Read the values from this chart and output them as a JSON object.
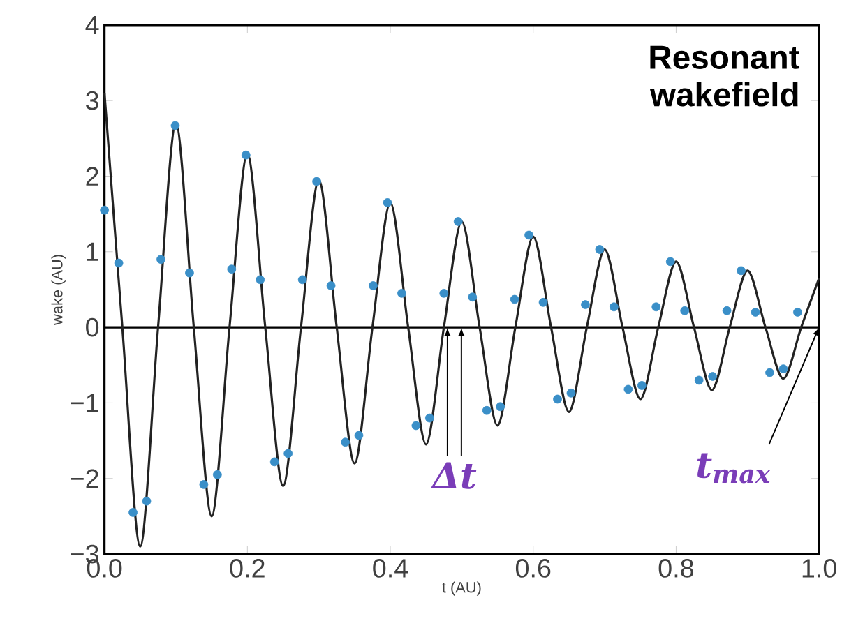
{
  "chart_data": {
    "type": "line",
    "xlabel": "t (AU)",
    "ylabel": "wake (AU)",
    "xlim": [
      0,
      1
    ],
    "ylim": [
      -3,
      4
    ],
    "xticks": [
      {
        "value": 0,
        "label": "0.0"
      },
      {
        "value": 0.2,
        "label": "0.2"
      },
      {
        "value": 0.4,
        "label": "0.4"
      },
      {
        "value": 0.6,
        "label": "0.6"
      },
      {
        "value": 0.8,
        "label": "0.8"
      },
      {
        "value": 1,
        "label": "1.0"
      }
    ],
    "yticks": [
      {
        "value": -3,
        "label": "−3"
      },
      {
        "value": -2,
        "label": "−2"
      },
      {
        "value": -1,
        "label": "−1"
      },
      0,
      1,
      2,
      3,
      4
    ],
    "series": [
      {
        "color": "#222222",
        "marker": "none",
        "x": [
          0,
          0.025,
          0.05,
          0.075,
          0.1,
          0.125,
          0.15,
          0.175,
          0.2,
          0.225,
          0.25,
          0.275,
          0.3,
          0.325,
          0.35,
          0.375,
          0.4,
          0.425,
          0.45,
          0.475,
          0.5,
          0.525,
          0.55,
          0.575,
          0.6,
          0.625,
          0.65,
          0.675,
          0.7,
          0.725,
          0.75,
          0.775,
          0.8,
          0.825,
          0.85,
          0.875,
          0.9,
          0.925,
          0.95,
          0.975,
          1.0
        ],
        "values": [
          3.1,
          0,
          -2.9,
          0,
          2.7,
          0,
          -2.5,
          0,
          2.3,
          0,
          -2.1,
          0,
          1.95,
          0,
          -1.8,
          0,
          1.65,
          0,
          -1.55,
          0,
          1.4,
          0,
          -1.3,
          0,
          1.2,
          0,
          -1.12,
          0,
          1.03,
          0,
          -0.95,
          0,
          0.87,
          0,
          -0.83,
          0,
          0.75,
          0,
          -0.68,
          0,
          0.65
        ]
      },
      {
        "type": "scatter",
        "marker": "circle",
        "color": "#3a8fc8",
        "x": [
          0,
          0.02,
          0.04,
          0.059,
          0.079,
          0.099,
          0.119,
          0.139,
          0.158,
          0.178,
          0.198,
          0.218,
          0.238,
          0.257,
          0.277,
          0.297,
          0.317,
          0.337,
          0.356,
          0.376,
          0.396,
          0.416,
          0.436,
          0.455,
          0.475,
          0.495,
          0.515,
          0.535,
          0.554,
          0.574,
          0.594,
          0.614,
          0.634,
          0.653,
          0.673,
          0.693,
          0.713,
          0.733,
          0.752,
          0.772,
          0.792,
          0.812,
          0.832,
          0.851,
          0.871,
          0.891,
          0.911,
          0.931,
          0.95,
          0.97
        ],
        "values": [
          1.55,
          0.85,
          -2.45,
          -2.3,
          0.9,
          2.67,
          0.72,
          -2.08,
          -1.95,
          0.77,
          2.28,
          0.63,
          -1.78,
          -1.67,
          0.63,
          1.93,
          0.55,
          -1.52,
          -1.43,
          0.55,
          1.65,
          0.45,
          -1.3,
          -1.2,
          0.45,
          1.4,
          0.4,
          -1.1,
          -1.05,
          0.37,
          1.22,
          0.33,
          -0.95,
          -0.87,
          0.3,
          1.03,
          0.27,
          -0.82,
          -0.77,
          0.27,
          0.87,
          0.22,
          -0.7,
          -0.65,
          0.22,
          0.75,
          0.2,
          -0.6,
          -0.55,
          0.2
        ]
      }
    ],
    "ref_lines": [
      {
        "axis": "y",
        "value": 0,
        "color": "#000000"
      }
    ],
    "annotations": [
      "Resonant wakefield",
      {
        "text": "Δt",
        "x": 0.48,
        "y": 0
      },
      {
        "text": "t$_{max}$",
        "x": 1.0,
        "y": 0
      }
    ]
  }
}
